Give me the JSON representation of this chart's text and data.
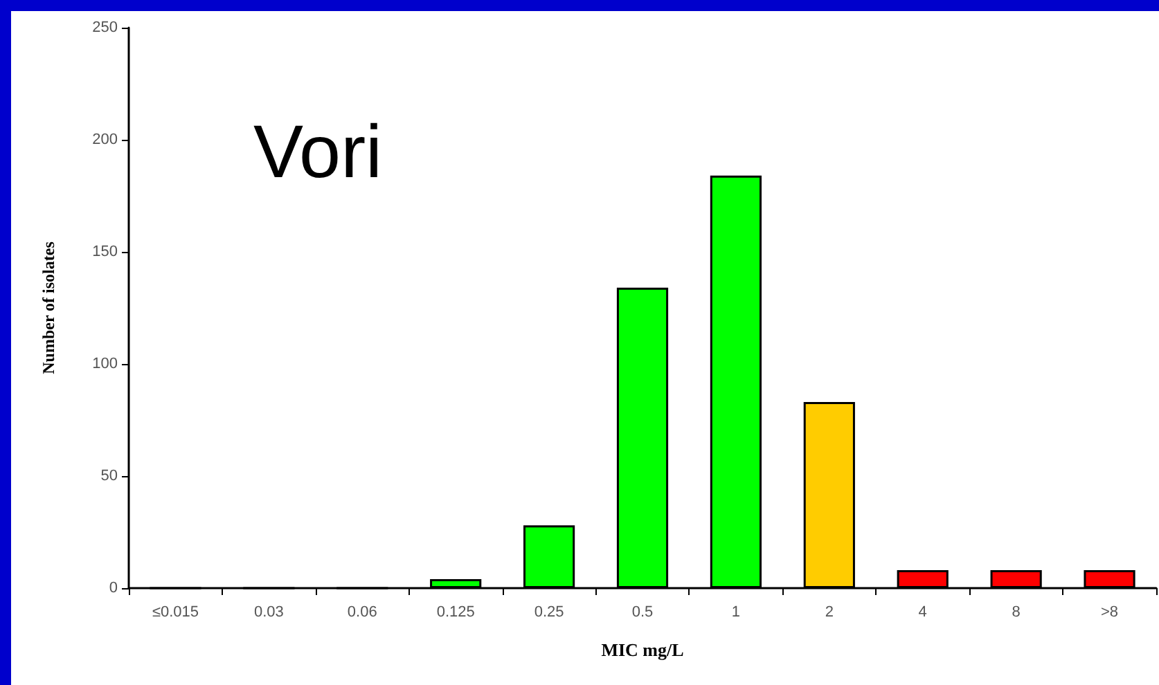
{
  "chart_data": {
    "type": "bar",
    "title": "Vori",
    "xlabel": "MIC mg/L",
    "ylabel": "Number of isolates",
    "categories": [
      "≤0.015",
      "0.03",
      "0.06",
      "0.125",
      "0.25",
      "0.5",
      "1",
      "2",
      "4",
      "8",
      ">8"
    ],
    "values": [
      0,
      0,
      0,
      4,
      28,
      134,
      184,
      83,
      8,
      8,
      8
    ],
    "colors": [
      "#00ff00",
      "#00ff00",
      "#00ff00",
      "#00ff00",
      "#00ff00",
      "#00ff00",
      "#00ff00",
      "#ffcc00",
      "#ff0000",
      "#ff0000",
      "#ff0000"
    ],
    "ylim": [
      0,
      250
    ],
    "yticks": [
      0,
      50,
      100,
      150,
      200,
      250
    ],
    "grid": false
  }
}
